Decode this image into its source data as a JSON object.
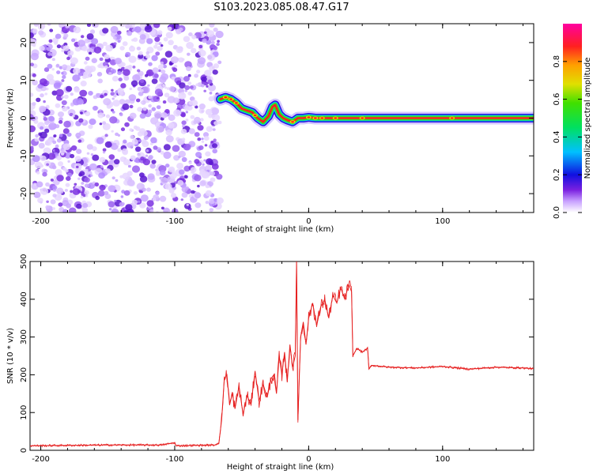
{
  "title": "S103.2023.085.08.47.G17",
  "chart_data": [
    {
      "type": "heatmap",
      "title": "S103.2023.085.08.47.G17",
      "xlabel": "Height of straight line (km)",
      "ylabel": "Frequency (Hz)",
      "xlim": [
        -208,
        168
      ],
      "ylim": [
        -25,
        25
      ],
      "xticks": [
        -200,
        -100,
        0,
        100
      ],
      "yticks": [
        -20,
        -10,
        0,
        10,
        20
      ],
      "noise_region_x": [
        -208,
        -66
      ],
      "frequency_track": {
        "x": [
          -66,
          -62,
          -58,
          -54,
          -50,
          -46,
          -42,
          -38,
          -34,
          -30,
          -27,
          -25,
          -22,
          -19,
          -16,
          -12,
          -8,
          -4,
          0,
          5,
          10,
          20,
          40,
          80,
          120,
          168
        ],
        "y": [
          5,
          5.5,
          5,
          4,
          2.5,
          2,
          1.5,
          0,
          -1,
          0.5,
          3,
          3.5,
          1,
          0,
          -0.5,
          -1,
          0,
          0,
          0.2,
          0,
          0,
          0,
          0,
          0,
          0,
          0
        ]
      },
      "colorbar": {
        "label": "Normalized spectral amplitude",
        "ticks": [
          0.0,
          0.2,
          0.4,
          0.6,
          0.8
        ],
        "range": [
          0,
          1
        ]
      },
      "colors": {
        "track": "#ff2020",
        "noise": "#8a2be2"
      }
    },
    {
      "type": "line",
      "xlabel": "Height of straight line (km)",
      "ylabel": "SNR (10 * v/v)",
      "xlim": [
        -208,
        168
      ],
      "ylim": [
        0,
        500
      ],
      "xticks": [
        -200,
        -100,
        0,
        100
      ],
      "yticks": [
        0,
        100,
        200,
        300,
        400,
        500
      ],
      "series": [
        {
          "color": "#e62020",
          "x": [
            -208,
            -150,
            -110,
            -100,
            -99,
            -70,
            -67,
            -65,
            -63,
            -61,
            -59,
            -57,
            -55,
            -52,
            -49,
            -46,
            -43,
            -40,
            -37,
            -34,
            -31,
            -28,
            -26,
            -24,
            -22,
            -20,
            -18,
            -16,
            -14,
            -12,
            -10,
            -9,
            -8,
            -6,
            -4,
            -2,
            0,
            3,
            6,
            9,
            12,
            15,
            18,
            21,
            24,
            27,
            30,
            32,
            33,
            36,
            40,
            44,
            45,
            47,
            60,
            80,
            100,
            120,
            140,
            160,
            168
          ],
          "y": [
            12,
            14,
            14,
            20,
            12,
            14,
            20,
            80,
            190,
            200,
            120,
            150,
            110,
            170,
            95,
            145,
            120,
            210,
            130,
            175,
            140,
            190,
            200,
            150,
            250,
            200,
            260,
            180,
            280,
            220,
            250,
            500,
            80,
            300,
            340,
            280,
            350,
            390,
            330,
            380,
            400,
            350,
            410,
            390,
            430,
            400,
            440,
            420,
            250,
            270,
            260,
            270,
            215,
            225,
            220,
            218,
            222,
            215,
            220,
            218,
            216
          ]
        }
      ]
    }
  ]
}
